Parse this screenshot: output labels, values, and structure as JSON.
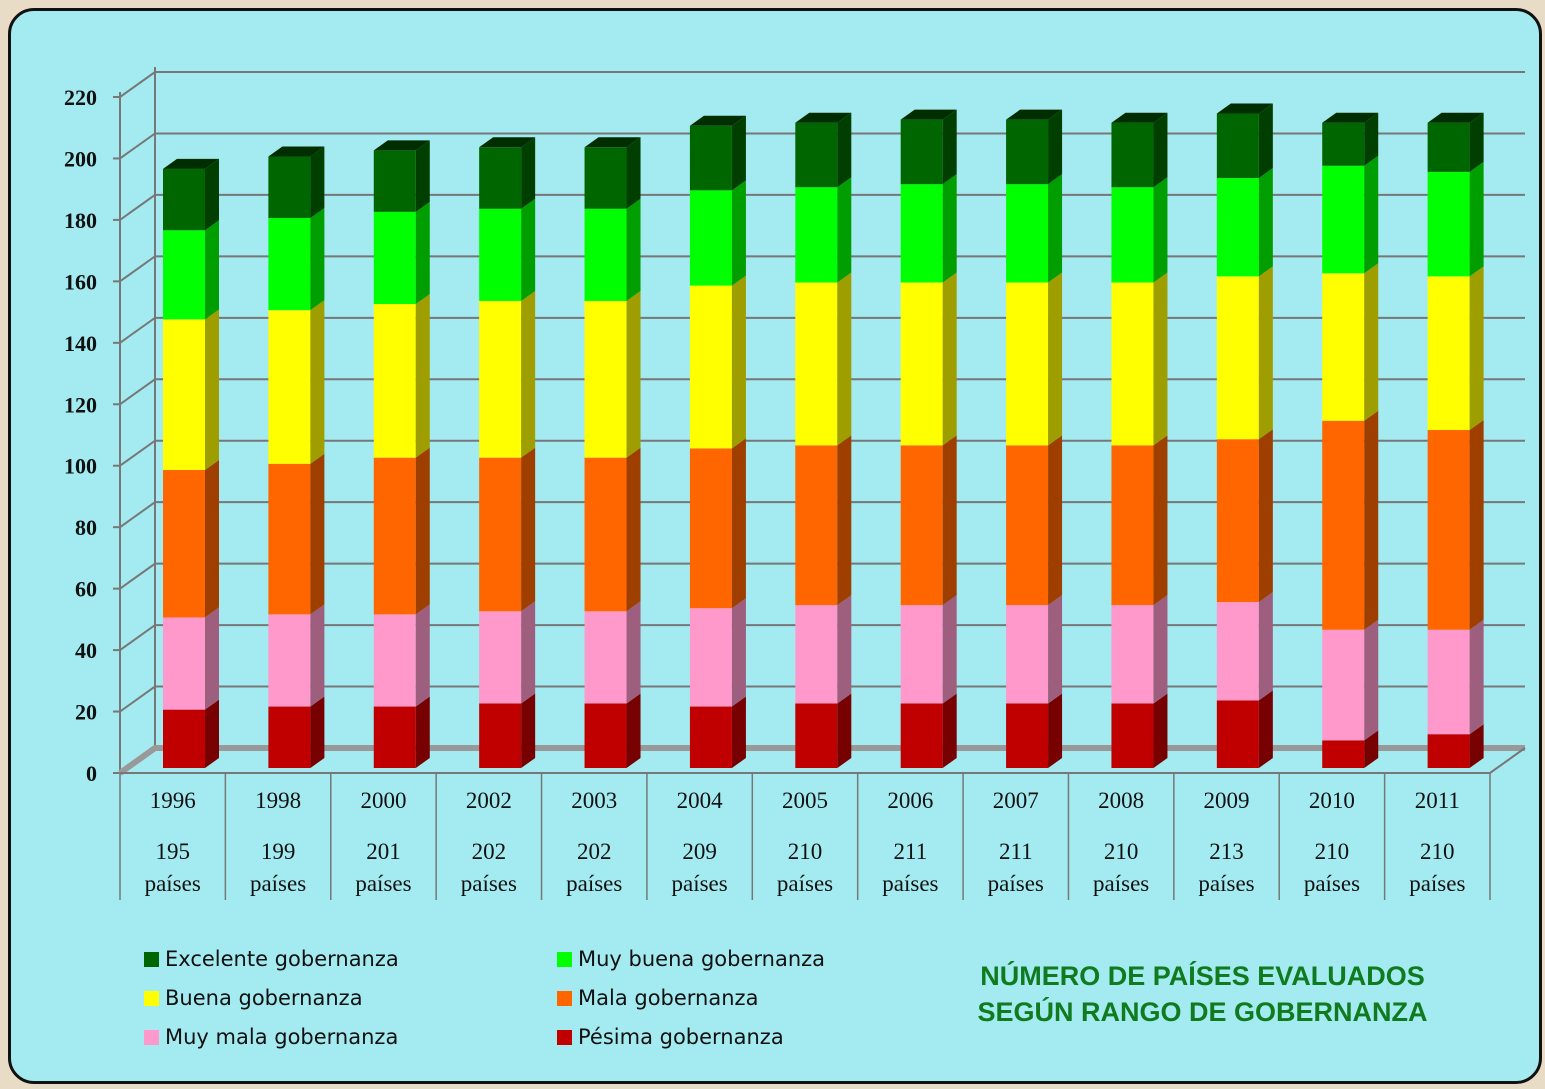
{
  "chart_data": {
    "type": "bar3d_stacked",
    "title": "NÚMERO DE PAÍSES EVALUADOS SEGÚN RANGO DE GOBERNANZA",
    "categories": [
      "1996",
      "1998",
      "2000",
      "2002",
      "2003",
      "2004",
      "2005",
      "2006",
      "2007",
      "2008",
      "2009",
      "2010",
      "2011"
    ],
    "category_sublabels": [
      "195 países",
      "199 países",
      "201 países",
      "202 países",
      "202 países",
      "209 países",
      "210 países",
      "211 países",
      "211 países",
      "210 países",
      "213 países",
      "210 países",
      "210 países"
    ],
    "series": [
      {
        "name": "Pésima gobernanza",
        "color": "#c00000",
        "values": [
          19,
          20,
          20,
          21,
          21,
          20,
          21,
          21,
          21,
          21,
          22,
          9,
          11
        ]
      },
      {
        "name": "Muy mala gobernanza",
        "color": "#ff99cc",
        "values": [
          30,
          30,
          30,
          30,
          30,
          32,
          32,
          32,
          32,
          32,
          32,
          36,
          34
        ]
      },
      {
        "name": "Mala gobernanza",
        "color": "#ff6600",
        "values": [
          48,
          49,
          51,
          50,
          50,
          52,
          52,
          52,
          52,
          52,
          53,
          68,
          65
        ]
      },
      {
        "name": "Buena gobernanza",
        "color": "#ffff00",
        "values": [
          49,
          50,
          50,
          51,
          51,
          53,
          53,
          53,
          53,
          53,
          53,
          48,
          50
        ]
      },
      {
        "name": "Muy buena gobernanza",
        "color": "#00ff00",
        "values": [
          29,
          30,
          30,
          30,
          30,
          31,
          31,
          32,
          32,
          31,
          32,
          35,
          34
        ]
      },
      {
        "name": "Excelente gobernanza",
        "color": "#006600",
        "values": [
          20,
          20,
          20,
          20,
          20,
          21,
          21,
          21,
          21,
          21,
          21,
          14,
          16
        ]
      }
    ],
    "ylim": [
      0,
      220
    ],
    "yticks": [
      0,
      20,
      40,
      60,
      80,
      100,
      120,
      140,
      160,
      180,
      200,
      220
    ],
    "grid": true
  }
}
